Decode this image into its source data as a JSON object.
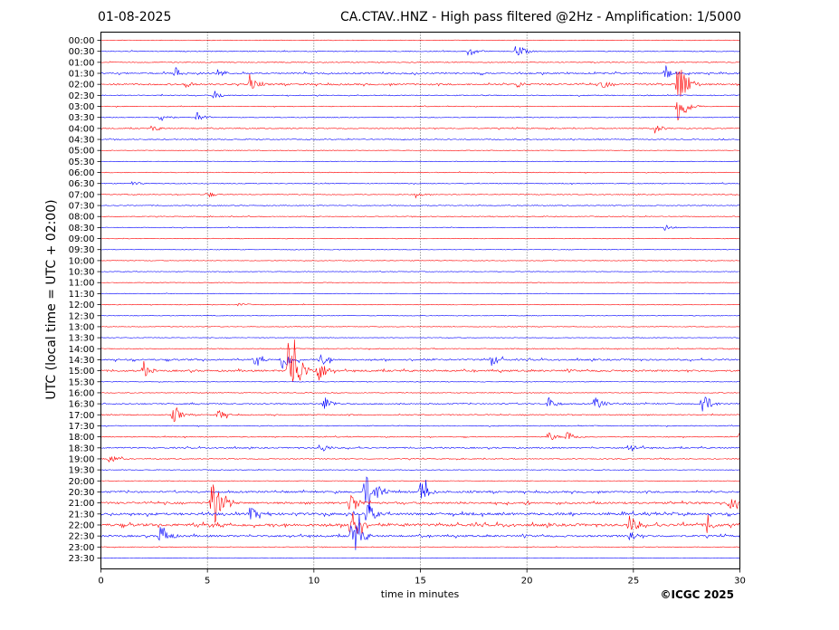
{
  "header": {
    "date": "01-08-2025",
    "title": "CA.CTAV..HNZ - High pass filtered @2Hz - Amplification: 1/5000"
  },
  "footer": {
    "copyright": "©ICGC 2025"
  },
  "chart_data": {
    "type": "line",
    "title": "CA.CTAV..HNZ - High pass filtered @2Hz - Amplification: 1/5000",
    "xlabel": "time in minutes",
    "ylabel": "UTC (local time = UTC + 02:00)",
    "xlim": [
      0,
      30
    ],
    "x_ticks": [
      0,
      5,
      10,
      15,
      20,
      25,
      30
    ],
    "x_gridlines": [
      5,
      10,
      15,
      20,
      25
    ],
    "grid": "vertical dotted lines at each 5 minutes",
    "row_colors": [
      "#ff0000",
      "#0000ff"
    ],
    "rows": [
      "00:00",
      "00:30",
      "01:00",
      "01:30",
      "02:00",
      "02:30",
      "03:00",
      "03:30",
      "04:00",
      "04:30",
      "05:00",
      "05:30",
      "06:00",
      "06:30",
      "07:00",
      "07:30",
      "08:00",
      "08:30",
      "09:00",
      "09:30",
      "10:00",
      "10:30",
      "11:00",
      "11:30",
      "12:00",
      "12:30",
      "13:00",
      "13:30",
      "14:00",
      "14:30",
      "15:00",
      "15:30",
      "16:00",
      "16:30",
      "17:00",
      "17:30",
      "18:00",
      "18:30",
      "19:00",
      "19:30",
      "20:00",
      "20:30",
      "21:00",
      "21:30",
      "22:00",
      "22:30",
      "23:00",
      "23:30"
    ],
    "activity_level": [
      0.3,
      0.6,
      0.6,
      1.4,
      1.6,
      0.7,
      0.4,
      0.4,
      0.7,
      0.6,
      0.2,
      0.2,
      0.5,
      0.5,
      0.5,
      0.5,
      0.4,
      0.4,
      0.3,
      0.2,
      0.2,
      0.2,
      0.2,
      0.2,
      0.3,
      0.2,
      0.2,
      0.2,
      0.5,
      1.6,
      1.8,
      0.2,
      0.3,
      1.0,
      0.8,
      0.6,
      0.6,
      1.2,
      0.6,
      0.2,
      0.2,
      1.8,
      2.0,
      2.6,
      3.0,
      2.0,
      0.3,
      0.2
    ],
    "events": [
      {
        "row": "00:30",
        "minute": 17.3,
        "amp": 6
      },
      {
        "row": "00:30",
        "minute": 19.5,
        "amp": 9
      },
      {
        "row": "01:30",
        "minute": 3.5,
        "amp": 7
      },
      {
        "row": "01:30",
        "minute": 5.5,
        "amp": 6
      },
      {
        "row": "01:30",
        "minute": 26.5,
        "amp": 7
      },
      {
        "row": "02:00",
        "minute": 4.0,
        "amp": 6
      },
      {
        "row": "02:00",
        "minute": 7.0,
        "amp": 8
      },
      {
        "row": "02:00",
        "minute": 19.5,
        "amp": 5
      },
      {
        "row": "02:00",
        "minute": 23.5,
        "amp": 6
      },
      {
        "row": "02:00",
        "minute": 27.1,
        "amp": 36
      },
      {
        "row": "02:30",
        "minute": 5.3,
        "amp": 6
      },
      {
        "row": "03:00",
        "minute": 27.1,
        "amp": 22
      },
      {
        "row": "03:30",
        "minute": 2.8,
        "amp": 6
      },
      {
        "row": "03:30",
        "minute": 4.5,
        "amp": 6
      },
      {
        "row": "04:00",
        "minute": 2.4,
        "amp": 4
      },
      {
        "row": "04:00",
        "minute": 26.0,
        "amp": 6
      },
      {
        "row": "06:30",
        "minute": 1.5,
        "amp": 3
      },
      {
        "row": "07:00",
        "minute": 5.0,
        "amp": 4
      },
      {
        "row": "07:00",
        "minute": 14.8,
        "amp": 3
      },
      {
        "row": "08:30",
        "minute": 26.5,
        "amp": 4
      },
      {
        "row": "12:00",
        "minute": 6.5,
        "amp": 3
      },
      {
        "row": "14:30",
        "minute": 7.2,
        "amp": 6
      },
      {
        "row": "14:30",
        "minute": 8.5,
        "amp": 14
      },
      {
        "row": "14:30",
        "minute": 10.3,
        "amp": 8
      },
      {
        "row": "14:30",
        "minute": 18.3,
        "amp": 8
      },
      {
        "row": "15:00",
        "minute": 2.0,
        "amp": 8
      },
      {
        "row": "15:00",
        "minute": 8.8,
        "amp": 48
      },
      {
        "row": "15:00",
        "minute": 9.2,
        "amp": 22
      },
      {
        "row": "15:00",
        "minute": 10.2,
        "amp": 14
      },
      {
        "row": "16:30",
        "minute": 10.5,
        "amp": 9
      },
      {
        "row": "16:30",
        "minute": 21.0,
        "amp": 8
      },
      {
        "row": "16:30",
        "minute": 23.2,
        "amp": 9
      },
      {
        "row": "16:30",
        "minute": 28.2,
        "amp": 16
      },
      {
        "row": "17:00",
        "minute": 3.4,
        "amp": 9
      },
      {
        "row": "17:00",
        "minute": 5.5,
        "amp": 6
      },
      {
        "row": "18:00",
        "minute": 21.0,
        "amp": 6
      },
      {
        "row": "18:00",
        "minute": 21.9,
        "amp": 8
      },
      {
        "row": "18:00",
        "minute": 30.0,
        "amp": 6
      },
      {
        "row": "18:30",
        "minute": 10.3,
        "amp": 7
      },
      {
        "row": "18:30",
        "minute": 24.8,
        "amp": 7
      },
      {
        "row": "19:00",
        "minute": 0.4,
        "amp": 6
      },
      {
        "row": "20:30",
        "minute": 12.4,
        "amp": 22
      },
      {
        "row": "20:30",
        "minute": 13.0,
        "amp": 12
      },
      {
        "row": "20:30",
        "minute": 15.0,
        "amp": 14
      },
      {
        "row": "21:00",
        "minute": 5.2,
        "amp": 36
      },
      {
        "row": "21:00",
        "minute": 11.7,
        "amp": 16
      },
      {
        "row": "21:00",
        "minute": 29.5,
        "amp": 9
      },
      {
        "row": "21:30",
        "minute": 7.0,
        "amp": 8
      },
      {
        "row": "21:30",
        "minute": 12.5,
        "amp": 14
      },
      {
        "row": "22:00",
        "minute": 11.7,
        "amp": 22
      },
      {
        "row": "22:00",
        "minute": 24.8,
        "amp": 12
      },
      {
        "row": "22:00",
        "minute": 28.5,
        "amp": 8
      },
      {
        "row": "22:30",
        "minute": 2.8,
        "amp": 16
      },
      {
        "row": "22:30",
        "minute": 11.8,
        "amp": 26
      },
      {
        "row": "22:30",
        "minute": 24.8,
        "amp": 8
      }
    ]
  }
}
